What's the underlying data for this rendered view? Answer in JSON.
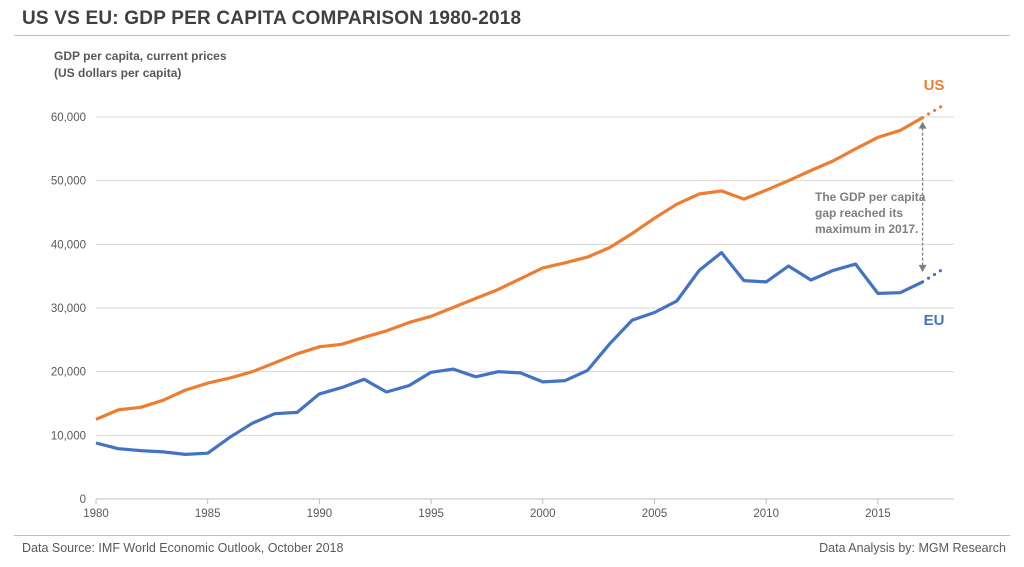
{
  "chart_data": {
    "type": "line",
    "title": "US VS EU: GDP PER CAPITA COMPARISON 1980-2018",
    "ylabel": "GDP per capita, current prices\n(US dollars per capita)",
    "ylabel_lines": [
      "GDP per capita, current prices",
      "(US dollars per capita)"
    ],
    "xlabel": "",
    "ylim": [
      0,
      60000
    ],
    "yticks": [
      "0",
      "10,000",
      "20,000",
      "30,000",
      "40,000",
      "50,000",
      "60,000"
    ],
    "xticks": [
      "1980",
      "1985",
      "1990",
      "1995",
      "2000",
      "2005",
      "2010",
      "2015"
    ],
    "grid": true,
    "x": [
      1980,
      1981,
      1982,
      1983,
      1984,
      1985,
      1986,
      1987,
      1988,
      1989,
      1990,
      1991,
      1992,
      1993,
      1994,
      1995,
      1996,
      1997,
      1998,
      1999,
      2000,
      2001,
      2002,
      2003,
      2004,
      2005,
      2006,
      2007,
      2008,
      2009,
      2010,
      2011,
      2012,
      2013,
      2014,
      2015,
      2016,
      2017,
      2018
    ],
    "forecast_from": 2017,
    "series": [
      {
        "name": "US",
        "color": "#ed7d31",
        "values": [
          12500,
          14000,
          14400,
          15500,
          17100,
          18200,
          19000,
          20000,
          21400,
          22800,
          23900,
          24300,
          25400,
          26400,
          27700,
          28700,
          30100,
          31500,
          32900,
          34600,
          36300,
          37100,
          38000,
          39500,
          41700,
          44100,
          46300,
          47900,
          48400,
          47100,
          48500,
          50000,
          51600,
          53100,
          55000,
          56800,
          57900,
          59900,
          62000
        ]
      },
      {
        "name": "EU",
        "color": "#4472c4",
        "values": [
          8800,
          7900,
          7600,
          7400,
          7000,
          7200,
          9700,
          11900,
          13400,
          13600,
          16500,
          17500,
          18800,
          16800,
          17800,
          19900,
          20400,
          19200,
          20000,
          19800,
          18400,
          18600,
          20200,
          24400,
          28100,
          29300,
          31100,
          35900,
          38700,
          34300,
          34100,
          36600,
          34400,
          35900,
          36900,
          32300,
          32400,
          34100,
          36300
        ]
      }
    ],
    "annotation": {
      "lines": [
        "The GDP per capita",
        "gap reached its",
        "maximum in 2017."
      ],
      "year": 2017
    }
  },
  "footer": {
    "source": "Data Source: IMF World Economic Outlook, October 2018",
    "analysis": "Data Analysis by: MGM Research"
  }
}
